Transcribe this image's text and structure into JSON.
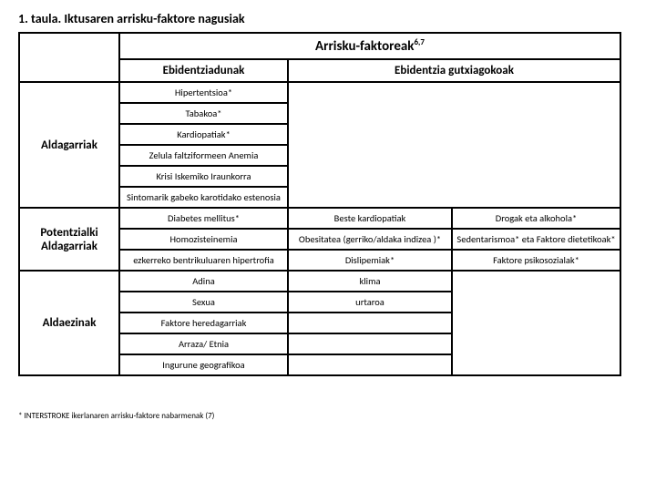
{
  "title": "1. taula. Iktusaren arrisku-faktore nagusiak",
  "header_main": "Arrisku-faktoreak",
  "header_sup": "6,7",
  "header_col1": "Ebidentziadunak",
  "header_col2": "Ebidentzia gutxiagokoak",
  "section1": {
    "label": "Aldagarriak",
    "rows": [
      "Hipertentsioa*",
      "Tabakoa*",
      "Kardiopatiak*",
      "Zelula faltziformeen Anemia",
      "Krisi Iskemiko Iraunkorra",
      "Sintomarik gabeko karotidako estenosia"
    ]
  },
  "section2": {
    "label": "Potentzialki Aldagarriak",
    "rows": [
      {
        "c1": "Diabetes mellitus*",
        "c2": "Beste kardiopatiak",
        "c3": "Drogak eta alkohola*"
      },
      {
        "c1": "Homozisteinemia",
        "c2": "Obesitatea (gerriko/aldaka indizea )*",
        "c3": "Sedentarismoa* eta Faktore dietetikoak*"
      },
      {
        "c1": "ezkerreko bentrikuluaren hipertrofia",
        "c2": "Dislipemiak*",
        "c3": "Faktore psikosozialak*"
      }
    ]
  },
  "section3": {
    "label": "Aldaezinak",
    "rows": [
      {
        "c1": "Adina",
        "c2": "klima"
      },
      {
        "c1": "Sexua",
        "c2": "urtaroa"
      },
      {
        "c1": "Faktore heredagarriak",
        "c2": ""
      },
      {
        "c1": "Arraza/ Etnia",
        "c2": ""
      },
      {
        "c1": "Ingurune geografikoa",
        "c2": ""
      }
    ]
  },
  "footnote": "* INTERSTROKE ikerlanaren arrisku-faktore nabarmenak (7)"
}
